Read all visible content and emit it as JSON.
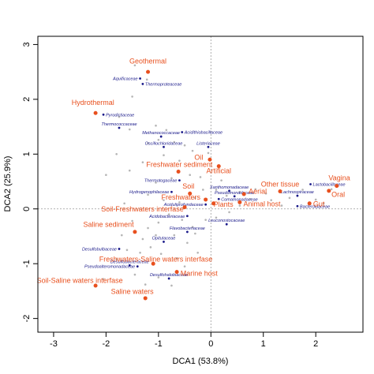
{
  "chart_data": {
    "type": "scatter",
    "title": "",
    "xlabel": "DCA1 (53.8%)",
    "ylabel": "DCA2 (25.9%)",
    "xlim": [
      -3.3,
      2.9
    ],
    "ylim": [
      -2.25,
      3.15
    ],
    "xticks": [
      -3,
      -2,
      -1,
      0,
      1,
      2
    ],
    "yticks": [
      -2,
      -1,
      0,
      1,
      2,
      3
    ],
    "reference_lines": {
      "x": 0,
      "y": 0
    },
    "colors": {
      "environments": "#e8501e",
      "families": "#1a1a8a",
      "background_taxa": "#b5b5b5"
    },
    "environments": [
      {
        "label": "Geothermal",
        "x": -1.2,
        "y": 2.5,
        "lx": -1.2,
        "ly": 2.65,
        "anchor": "middle"
      },
      {
        "label": "Hydrothermal",
        "x": -2.2,
        "y": 1.75,
        "lx": -2.25,
        "ly": 1.9,
        "anchor": "middle"
      },
      {
        "label": "Oil",
        "x": -0.02,
        "y": 0.9,
        "lx": -0.15,
        "ly": 0.9,
        "anchor": "end"
      },
      {
        "label": "Freshwater sediment",
        "x": -0.62,
        "y": 0.68,
        "lx": -0.6,
        "ly": 0.77,
        "anchor": "middle"
      },
      {
        "label": "Artificial",
        "x": 0.15,
        "y": 0.78,
        "lx": 0.15,
        "ly": 0.65,
        "anchor": "middle"
      },
      {
        "label": "Vagina",
        "x": 2.4,
        "y": 0.42,
        "lx": 2.45,
        "ly": 0.52,
        "anchor": "middle"
      },
      {
        "label": "Other tissue",
        "x": 1.32,
        "y": 0.32,
        "lx": 1.32,
        "ly": 0.41,
        "anchor": "middle"
      },
      {
        "label": "Aerial",
        "x": 0.63,
        "y": 0.27,
        "lx": 0.72,
        "ly": 0.28,
        "anchor": "start"
      },
      {
        "label": "Soil",
        "x": -0.4,
        "y": 0.28,
        "lx": -0.43,
        "ly": 0.37,
        "anchor": "middle"
      },
      {
        "label": "Oral",
        "x": 2.25,
        "y": 0.33,
        "lx": 2.3,
        "ly": 0.22,
        "anchor": "start"
      },
      {
        "label": "Freshwaters",
        "x": -0.1,
        "y": 0.17,
        "lx": -0.2,
        "ly": 0.17,
        "anchor": "end"
      },
      {
        "label": "Plants",
        "x": 0.05,
        "y": 0.1,
        "lx": 0.05,
        "ly": 0.04,
        "anchor": "start"
      },
      {
        "label": "Animal host",
        "x": 0.55,
        "y": 0.12,
        "lx": 0.62,
        "ly": 0.05,
        "anchor": "start"
      },
      {
        "label": "Gut",
        "x": 1.88,
        "y": 0.1,
        "lx": 1.95,
        "ly": 0.05,
        "anchor": "start"
      },
      {
        "label": "Soil-Freshwaters interfase",
        "x": -0.5,
        "y": 0.03,
        "lx": -0.52,
        "ly": -0.05,
        "anchor": "end"
      },
      {
        "label": "Saline sediment",
        "x": -1.45,
        "y": -0.42,
        "lx": -1.47,
        "ly": -0.33,
        "anchor": "end"
      },
      {
        "label": "Freshwaters-Saline waters interfase",
        "x": -1.1,
        "y": -1.0,
        "lx": -1.05,
        "ly": -0.96,
        "anchor": "middle"
      },
      {
        "label": "Marine host",
        "x": -0.65,
        "y": -1.15,
        "lx": -0.58,
        "ly": -1.22,
        "anchor": "start"
      },
      {
        "label": "Soil-Saline waters interfase",
        "x": -2.2,
        "y": -1.4,
        "lx": -2.5,
        "ly": -1.35,
        "anchor": "middle"
      },
      {
        "label": "Saline waters",
        "x": -1.25,
        "y": -1.63,
        "lx": -1.5,
        "ly": -1.55,
        "anchor": "middle"
      }
    ],
    "families": [
      {
        "label": "Aquificaceae",
        "x": -1.35,
        "y": 2.38,
        "anchor": "end"
      },
      {
        "label": "Thermoproteaceae",
        "x": -1.3,
        "y": 2.28,
        "anchor": "start"
      },
      {
        "label": "Pyrodictiaceae",
        "x": -2.05,
        "y": 1.72,
        "anchor": "start"
      },
      {
        "label": "Thermococcaceae",
        "x": -1.75,
        "y": 1.48,
        "anchor": "middle"
      },
      {
        "label": "Acidithiobacillaceae",
        "x": -0.55,
        "y": 1.4,
        "anchor": "start"
      },
      {
        "label": "Methanococcaceae",
        "x": -0.95,
        "y": 1.32,
        "anchor": "middle"
      },
      {
        "label": "Oscillochloridaceae",
        "x": -0.9,
        "y": 1.13,
        "anchor": "middle"
      },
      {
        "label": "Listeriaceae",
        "x": -0.05,
        "y": 1.13,
        "anchor": "middle"
      },
      {
        "label": "Thermotogaceae",
        "x": -0.6,
        "y": 0.52,
        "anchor": "end"
      },
      {
        "label": "Lactobacillaceae",
        "x": 1.9,
        "y": 0.45,
        "anchor": "start"
      },
      {
        "label": "Xanthomonadaceae",
        "x": 0.35,
        "y": 0.33,
        "anchor": "middle"
      },
      {
        "label": "Hydrogenophilaceae",
        "x": -0.75,
        "y": 0.31,
        "anchor": "end"
      },
      {
        "label": "Pseudomonadaceae",
        "x": 0.45,
        "y": 0.23,
        "anchor": "middle"
      },
      {
        "label": "Lachnospiraceae",
        "x": 1.65,
        "y": 0.24,
        "anchor": "middle"
      },
      {
        "label": "Comamonadaceae",
        "x": 0.15,
        "y": 0.18,
        "anchor": "start"
      },
      {
        "label": "Bacteroidaceae",
        "x": 1.65,
        "y": 0.05,
        "anchor": "start"
      },
      {
        "label": "Aciduliprofundaceae",
        "x": -0.1,
        "y": 0.08,
        "anchor": "end"
      },
      {
        "label": "Acidobacteriaceae",
        "x": -0.45,
        "y": -0.13,
        "anchor": "end"
      },
      {
        "label": "Leuconostocaceae",
        "x": 0.3,
        "y": -0.28,
        "anchor": "middle"
      },
      {
        "label": "Flavobacteriaceae",
        "x": -0.45,
        "y": -0.42,
        "anchor": "middle"
      },
      {
        "label": "Opitutaceae",
        "x": -0.9,
        "y": -0.6,
        "anchor": "middle"
      },
      {
        "label": "Desulfobulbaceae",
        "x": -1.75,
        "y": -0.73,
        "anchor": "end"
      },
      {
        "label": "Pseudoalteromonadaceae",
        "x": -1.4,
        "y": -1.05,
        "anchor": "end"
      },
      {
        "label": "Desulfobacteraceae",
        "x": -1.55,
        "y": -1.03,
        "anchor": "middle"
      },
      {
        "label": "Desulfohalobiaceae",
        "x": -0.8,
        "y": -1.27,
        "anchor": "middle"
      }
    ],
    "background_taxa": [
      [
        -1.22,
        2.36
      ],
      [
        -1.5,
        2.05
      ],
      [
        -1.75,
        1.68
      ],
      [
        -1.55,
        1.45
      ],
      [
        -1.05,
        1.52
      ],
      [
        -0.85,
        1.44
      ],
      [
        -1.0,
        1.26
      ],
      [
        -0.7,
        1.22
      ],
      [
        -0.5,
        1.16
      ],
      [
        -0.35,
        1.06
      ],
      [
        -0.05,
        1.02
      ],
      [
        -1.2,
        1.2
      ],
      [
        -0.9,
        0.98
      ],
      [
        -0.6,
        0.88
      ],
      [
        -0.4,
        0.62
      ],
      [
        -0.75,
        0.56
      ],
      [
        -1.55,
        0.7
      ],
      [
        -1.05,
        0.48
      ],
      [
        -1.2,
        0.26
      ],
      [
        -0.9,
        0.16
      ],
      [
        -0.6,
        0.12
      ],
      [
        -0.3,
        0.2
      ],
      [
        -0.15,
        0.35
      ],
      [
        0.1,
        0.35
      ],
      [
        0.3,
        0.24
      ],
      [
        0.55,
        0.31
      ],
      [
        0.75,
        0.18
      ],
      [
        0.85,
        0.36
      ],
      [
        1.05,
        0.28
      ],
      [
        1.15,
        0.16
      ],
      [
        1.35,
        0.06
      ],
      [
        1.5,
        0.2
      ],
      [
        1.75,
        0.35
      ],
      [
        2.0,
        0.17
      ],
      [
        2.15,
        0.1
      ],
      [
        2.3,
        0.36
      ],
      [
        0.55,
        0.06
      ],
      [
        0.35,
        -0.06
      ],
      [
        0.1,
        -0.16
      ],
      [
        -0.1,
        -0.2
      ],
      [
        -0.35,
        -0.33
      ],
      [
        -0.55,
        -0.2
      ],
      [
        -0.8,
        -0.1
      ],
      [
        -1.0,
        -0.25
      ],
      [
        -1.2,
        -0.35
      ],
      [
        -1.5,
        -0.22
      ],
      [
        -1.7,
        -0.48
      ],
      [
        -1.3,
        -0.55
      ],
      [
        -1.05,
        -0.48
      ],
      [
        -0.7,
        -0.48
      ],
      [
        -0.45,
        -0.62
      ],
      [
        -0.3,
        -0.45
      ],
      [
        -1.6,
        -0.75
      ],
      [
        -1.35,
        -0.8
      ],
      [
        -1.15,
        -0.7
      ],
      [
        -0.95,
        -0.82
      ],
      [
        -0.65,
        -0.9
      ],
      [
        -1.8,
        -0.92
      ],
      [
        -1.45,
        -1.2
      ],
      [
        -1.0,
        -1.25
      ],
      [
        -0.5,
        -1.05
      ],
      [
        -0.25,
        -0.8
      ],
      [
        -2.05,
        -1.28
      ],
      [
        -1.25,
        -1.38
      ],
      [
        -0.75,
        -1.4
      ],
      [
        -1.65,
        0.1
      ],
      [
        -2.0,
        0.62
      ],
      [
        -1.8,
        1.0
      ],
      [
        -1.3,
        0.85
      ],
      [
        -0.2,
        0.58
      ],
      [
        0.2,
        0.52
      ],
      [
        -1.45,
        2.62
      ]
    ]
  }
}
